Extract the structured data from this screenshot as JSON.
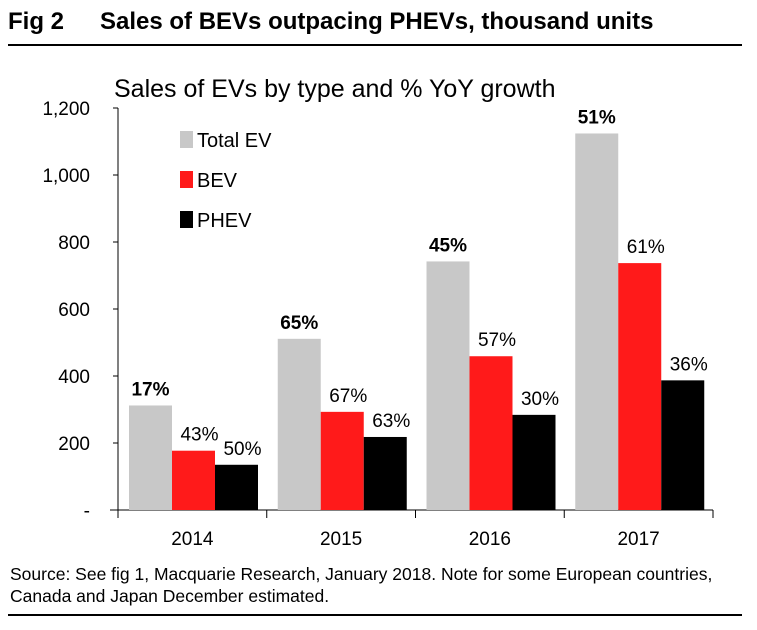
{
  "figure": {
    "number": "Fig 2",
    "heading": "Sales of BEVs outpacing PHEVs, thousand units",
    "source": "Source: See fig 1, Macquarie Research, January 2018. Note for some European countries, Canada and Japan December estimated."
  },
  "chart_data": {
    "type": "bar",
    "title": "Sales of EVs by type and % YoY growth",
    "xlabel": "",
    "ylabel": "",
    "ylim": [
      0,
      1200
    ],
    "yticks": [
      0,
      200,
      400,
      600,
      800,
      1000,
      1200
    ],
    "ytick_labels": [
      "-",
      "200",
      "400",
      "600",
      "800",
      "1,000",
      "1,200"
    ],
    "categories": [
      "2014",
      "2015",
      "2016",
      "2017"
    ],
    "legend_placement": "top-left",
    "grid": false,
    "series": [
      {
        "name": "Total EV",
        "color": "#c8c8c8",
        "values": [
          312,
          511,
          742,
          1124
        ],
        "labels": [
          "17%",
          "65%",
          "45%",
          "51%"
        ],
        "label_bold": true
      },
      {
        "name": "BEV",
        "color": "#ff1a1a",
        "values": [
          177,
          293,
          459,
          737
        ],
        "labels": [
          "43%",
          "67%",
          "57%",
          "61%"
        ],
        "label_bold": false
      },
      {
        "name": "PHEV",
        "color": "#000000",
        "values": [
          135,
          218,
          284,
          387
        ],
        "labels": [
          "50%",
          "63%",
          "30%",
          "36%"
        ],
        "label_bold": false
      }
    ]
  }
}
